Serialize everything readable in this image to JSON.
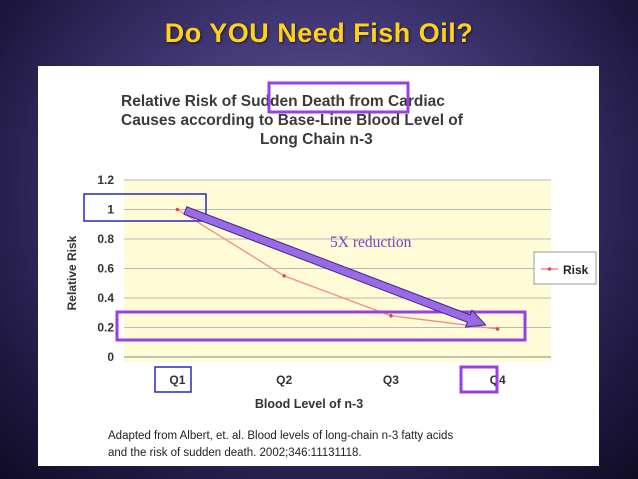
{
  "slide": {
    "title": "Do YOU Need Fish Oil?"
  },
  "chart_data": {
    "type": "line",
    "title_line1_pre": "Relative Risk of ",
    "title_highlight": "Sudden Death",
    "title_line1_post": " from Cardiac",
    "title_line2": "Causes according to Base-Line Blood Level of",
    "title_line3": "Long Chain n-3",
    "categories": [
      "Q1",
      "Q2",
      "Q3",
      "Q4"
    ],
    "series": [
      {
        "name": "Risk",
        "values": [
          1.0,
          0.55,
          0.28,
          0.19
        ],
        "color": "#f08a8a"
      }
    ],
    "xlabel": "Blood Level of n-3",
    "ylabel": "Relative Risk",
    "ylim": [
      0,
      1.2
    ],
    "yticks": [
      "0",
      "0.2",
      "0.4",
      "0.6",
      "0.8",
      "1",
      "1.2"
    ],
    "grid": true,
    "legend_position": "right",
    "annotation": "5X reduction",
    "source_line1": "Adapted from Albert, et. al.  Blood levels of long-chain n-3 fatty acids",
    "source_line2": "and the risk of sudden death. 2002;346:11131118.",
    "colors": {
      "plot_band": "#fffbd6",
      "highlight_purple": "#9a3fe0",
      "highlight_blue": "#2a2ab8",
      "arrow_fill": "#9a6ae6",
      "annotation_text": "#7b3fc8"
    }
  }
}
